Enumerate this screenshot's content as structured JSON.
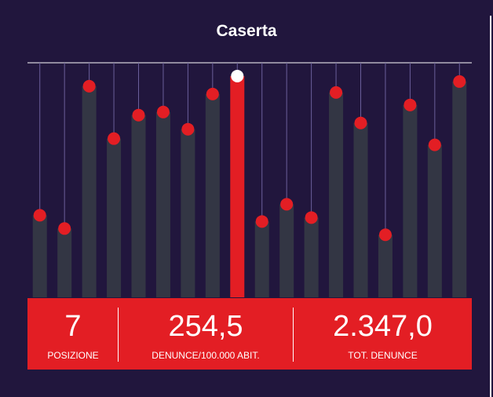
{
  "title": "Caserta",
  "colors": {
    "background": "#21163d",
    "bar": "#333644",
    "accent": "#e31e24",
    "highlight_dot": "#ffffff",
    "guide_line": "#6a5f9a"
  },
  "chart_data": {
    "type": "bar",
    "values": [
      105,
      88,
      270,
      203,
      233,
      237,
      215,
      260,
      283,
      97,
      119,
      102,
      262,
      223,
      80,
      246,
      195,
      276
    ],
    "highlight_index": 8,
    "ylim": [
      0,
      300
    ],
    "grid": false
  },
  "stats": [
    {
      "value": "7",
      "label": "POSIZIONE"
    },
    {
      "value": "254,5",
      "label": "DENUNCE/100.000 ABIT."
    },
    {
      "value": "2.347,0",
      "label": "TOT. DENUNCE"
    }
  ]
}
